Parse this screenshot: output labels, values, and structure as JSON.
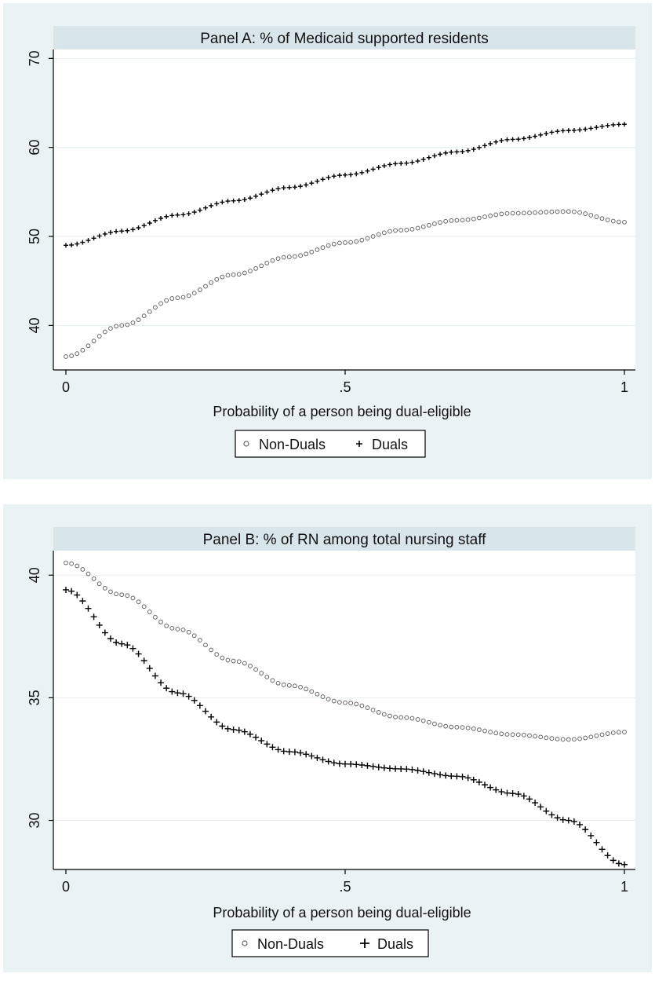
{
  "colors": {
    "frame": "#eaf2f3",
    "title_band": "#d8e5ea",
    "plot": "#ffffff",
    "grid": "#e6eef0",
    "nonduals_marker": "#666666",
    "duals_marker": "#000000"
  },
  "legend_labels": [
    "Non-Duals",
    "Duals"
  ],
  "chart_data": [
    {
      "type": "scatter",
      "title": "Panel A: % of Medicaid supported residents",
      "xlabel": "Probability of a person being dual-eligible",
      "ylabel": "",
      "xlim": [
        0,
        1
      ],
      "ylim": [
        35,
        71
      ],
      "xticks": [
        {
          "value": 0,
          "label": "0"
        },
        {
          "value": 0.5,
          "label": ".5"
        },
        {
          "value": 1,
          "label": "1"
        }
      ],
      "yticks": [
        {
          "value": 40,
          "label": "40"
        },
        {
          "value": 50,
          "label": "50"
        },
        {
          "value": 60,
          "label": "60"
        },
        {
          "value": 70,
          "label": "70"
        }
      ],
      "grid": true,
      "legend_position": "bottom",
      "marker_count": 101,
      "series": [
        {
          "name": "Non-Duals",
          "marker": "circle",
          "x": [
            0,
            0.1,
            0.2,
            0.3,
            0.4,
            0.5,
            0.6,
            0.7,
            0.8,
            0.9,
            1.0
          ],
          "y": [
            36.5,
            40.0,
            43.1,
            45.7,
            47.7,
            49.3,
            50.7,
            51.8,
            52.6,
            52.8,
            51.6
          ]
        },
        {
          "name": "Duals",
          "marker": "plus",
          "x": [
            0,
            0.1,
            0.2,
            0.3,
            0.4,
            0.5,
            0.6,
            0.7,
            0.8,
            0.9,
            1.0
          ],
          "y": [
            49.0,
            50.6,
            52.4,
            54.0,
            55.5,
            56.9,
            58.2,
            59.5,
            60.9,
            61.9,
            62.6
          ]
        }
      ]
    },
    {
      "type": "scatter",
      "title": "Panel B: % of RN among total nursing staff",
      "xlabel": "Probability of a person being dual-eligible",
      "ylabel": "",
      "xlim": [
        0,
        1
      ],
      "ylim": [
        28,
        41
      ],
      "xticks": [
        {
          "value": 0,
          "label": "0"
        },
        {
          "value": 0.5,
          "label": ".5"
        },
        {
          "value": 1,
          "label": "1"
        }
      ],
      "yticks": [
        {
          "value": 30,
          "label": "30"
        },
        {
          "value": 35,
          "label": "35"
        },
        {
          "value": 40,
          "label": "40"
        }
      ],
      "grid": true,
      "legend_position": "bottom",
      "marker_count": 101,
      "series": [
        {
          "name": "Non-Duals",
          "marker": "circle",
          "x": [
            0,
            0.1,
            0.2,
            0.3,
            0.4,
            0.5,
            0.6,
            0.7,
            0.8,
            0.9,
            1.0
          ],
          "y": [
            40.5,
            39.2,
            37.8,
            36.5,
            35.5,
            34.8,
            34.2,
            33.8,
            33.5,
            33.3,
            33.6
          ]
        },
        {
          "name": "Duals",
          "marker": "plus",
          "x": [
            0,
            0.1,
            0.2,
            0.3,
            0.4,
            0.5,
            0.6,
            0.7,
            0.8,
            0.9,
            1.0
          ],
          "y": [
            39.4,
            37.2,
            35.2,
            33.7,
            32.8,
            32.3,
            32.1,
            31.8,
            31.1,
            30.0,
            28.2
          ]
        }
      ]
    }
  ]
}
